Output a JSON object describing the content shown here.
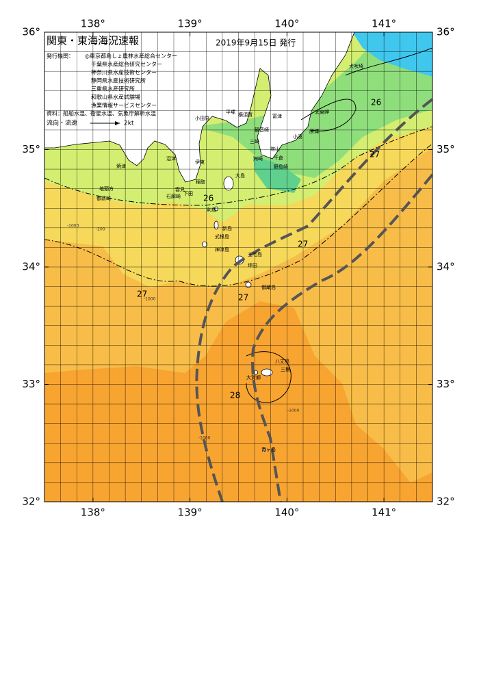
{
  "map": {
    "title": "関東・東海海況速報",
    "date": "2019年9月15日 発行",
    "issuer_label": "発行機関：",
    "issuers": [
      "◎東京都島しょ農林水産総合センター",
      "千葉県水産総合研究センター",
      "神奈川県水産技術センター",
      "静岡県水産技術研究所",
      "三重県水産研究所",
      "和歌山県水産試験場",
      "漁業情報サービスセンター"
    ],
    "source": "資料：船舶水温、衛星水温、気象庁解析水温",
    "current_legend": "流向・流速",
    "current_speed": "2kt",
    "lon_range": [
      137.5,
      141.5
    ],
    "lat_range": [
      32,
      36
    ],
    "lon_ticks": [
      {
        "value": 138,
        "label": "138°"
      },
      {
        "value": 139,
        "label": "139°"
      },
      {
        "value": 140,
        "label": "140°"
      },
      {
        "value": 141,
        "label": "141°"
      }
    ],
    "lat_ticks": [
      {
        "value": 32,
        "label": "32°"
      },
      {
        "value": 33,
        "label": "33°"
      },
      {
        "value": 34,
        "label": "34°"
      },
      {
        "value": 35,
        "label": "35°"
      },
      {
        "value": 36,
        "label": "36°"
      }
    ],
    "isotherm_labels": [
      "26",
      "27",
      "28"
    ],
    "depth_labels": [
      "-200",
      "-1000"
    ],
    "places": [
      "犬吠埼",
      "太東岬",
      "勝浦",
      "小湊",
      "館山",
      "千倉",
      "野島崎",
      "洲崎",
      "富津",
      "観音崎",
      "三崎",
      "横須賀",
      "平塚",
      "小田原",
      "大島",
      "利島",
      "新島",
      "式根島",
      "神津島",
      "三宅島",
      "坪田",
      "御蔵島",
      "八丈島",
      "三根",
      "大賀郷",
      "青ヶ島",
      "稲取",
      "下田",
      "伊東",
      "石廊崎",
      "雲見",
      "沼津",
      "焼津",
      "御前崎",
      "地頭方"
    ]
  }
}
